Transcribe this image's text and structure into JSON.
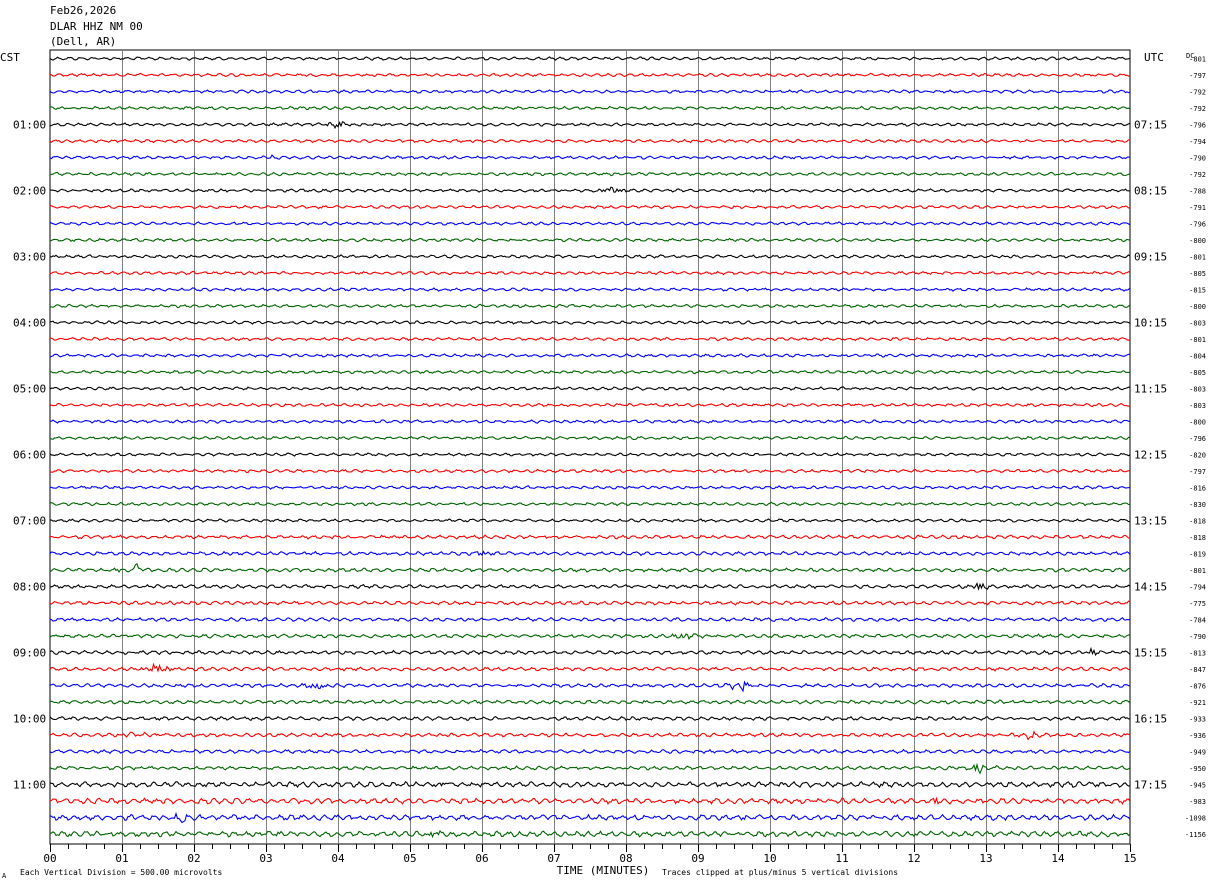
{
  "header": {
    "date": "Feb26,2026",
    "station": "DLAR HHZ NM 00",
    "location": "(Dell, AR)"
  },
  "left_zone_label": "CST",
  "right_zone_label": "UTC",
  "dc_header": "DC",
  "footer": {
    "scale_note": "Each Vertical Division =  500.00 microvolts",
    "clip_note": "Traces clipped at plus/minus 5 vertical divisions",
    "corner_mark": "A"
  },
  "colors": {
    "trace_cycle": [
      "#000000",
      "#ff0000",
      "#0000ff",
      "#006400"
    ],
    "grid": "#808080",
    "text": "#000000"
  },
  "chart_data": {
    "type": "line",
    "chart_kind": "helicorder seismogram",
    "xlabel": "TIME (MINUTES)",
    "x_ticks": [
      "00",
      "01",
      "02",
      "03",
      "04",
      "05",
      "06",
      "07",
      "08",
      "09",
      "10",
      "11",
      "12",
      "13",
      "14",
      "15"
    ],
    "xlim": [
      0,
      15
    ],
    "minutes_per_line": 15,
    "trace_count": 48,
    "left_hour_labels": [
      "01:00",
      "02:00",
      "03:00",
      "04:00",
      "05:00",
      "06:00",
      "07:00",
      "08:00",
      "09:00",
      "10:00",
      "11:00"
    ],
    "right_hour_labels": [
      "07:15",
      "08:15",
      "09:15",
      "10:15",
      "11:15",
      "12:15",
      "13:15",
      "14:15",
      "15:15",
      "16:15",
      "17:15"
    ],
    "dc_offsets": [
      "-801",
      "-797",
      "-792",
      "-792",
      "-796",
      "-794",
      "-790",
      "-792",
      "-788",
      "-791",
      "-796",
      "-800",
      "-801",
      "-805",
      "-815",
      "-800",
      "-803",
      "-801",
      "-804",
      "-805",
      "-803",
      "-803",
      "-800",
      "-796",
      "-820",
      "-797",
      "-816",
      "-830",
      "-818",
      "-818",
      "-819",
      "-801",
      "-794",
      "-775",
      "-784",
      "-790",
      "-813",
      "-847",
      "-876",
      "-921",
      "-933",
      "-936",
      "-949",
      "-950",
      "-945",
      "-983",
      "-1098",
      "-1156"
    ],
    "events": [
      {
        "trace": 4,
        "minute": 4.0,
        "amp": 2.5
      },
      {
        "trace": 6,
        "minute": 3.1,
        "amp": 1.8
      },
      {
        "trace": 8,
        "minute": 7.8,
        "amp": 2.5
      },
      {
        "trace": 21,
        "minute": 8.5,
        "amp": 1.5
      },
      {
        "trace": 21,
        "minute": 11.0,
        "amp": 1.5
      },
      {
        "trace": 30,
        "minute": 6.0,
        "amp": 2.0
      },
      {
        "trace": 31,
        "minute": 1.2,
        "amp": 3.5
      },
      {
        "trace": 32,
        "minute": 12.9,
        "amp": 3.0
      },
      {
        "trace": 35,
        "minute": 8.8,
        "amp": 3.5
      },
      {
        "trace": 36,
        "minute": 14.5,
        "amp": 2.0
      },
      {
        "trace": 37,
        "minute": 1.5,
        "amp": 4.5
      },
      {
        "trace": 38,
        "minute": 3.7,
        "amp": 3.0
      },
      {
        "trace": 38,
        "minute": 9.6,
        "amp": 6.0
      },
      {
        "trace": 41,
        "minute": 1.2,
        "amp": 2.0
      },
      {
        "trace": 41,
        "minute": 13.6,
        "amp": 3.0
      },
      {
        "trace": 43,
        "minute": 12.9,
        "amp": 3.5
      },
      {
        "trace": 44,
        "minute": 5.5,
        "amp": 2.0
      },
      {
        "trace": 45,
        "minute": 12.3,
        "amp": 2.5
      },
      {
        "trace": 46,
        "minute": 1.8,
        "amp": 2.5
      },
      {
        "trace": 47,
        "minute": 5.3,
        "amp": 2.0
      }
    ]
  }
}
